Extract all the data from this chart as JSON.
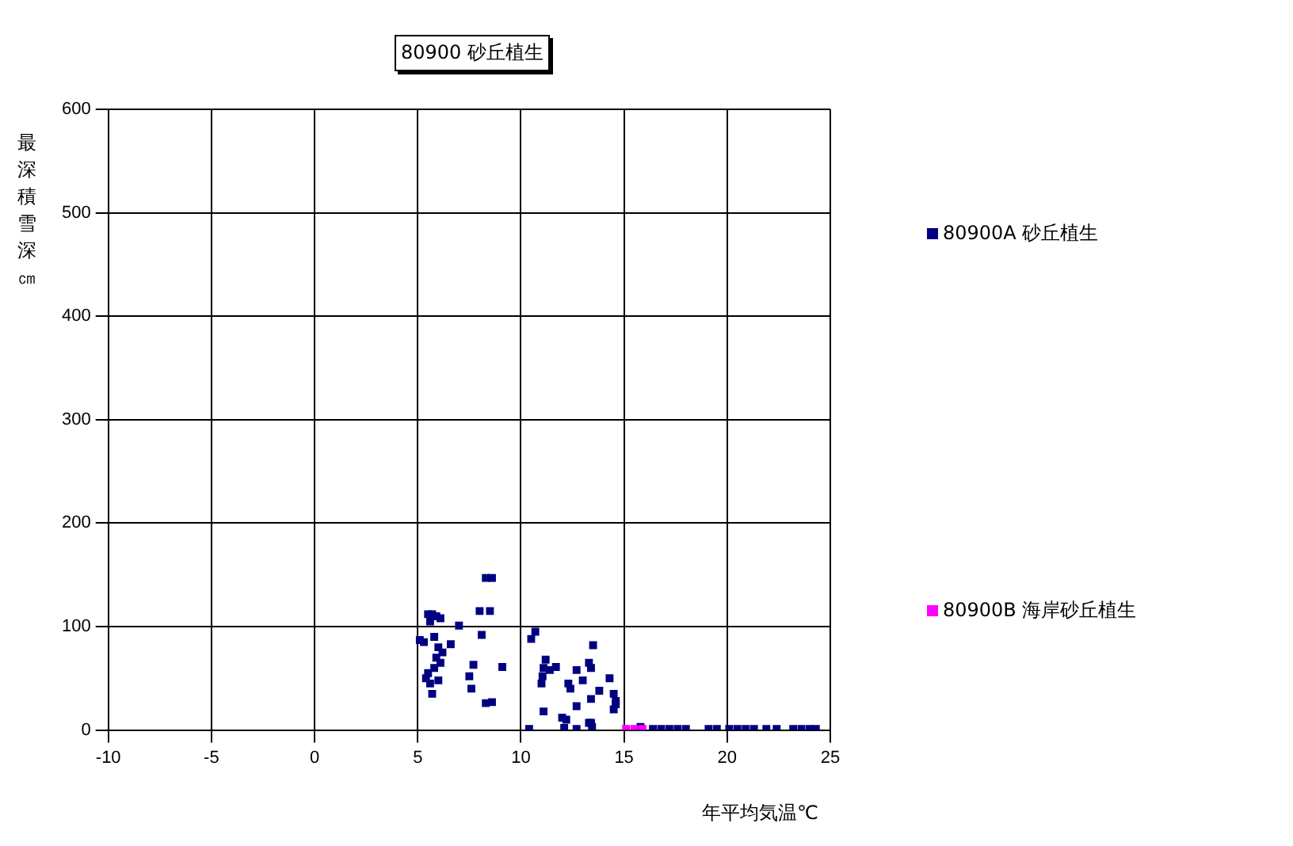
{
  "chart_data": {
    "type": "scatter",
    "title": "80900 砂丘植生",
    "xlabel": "年平均気温℃",
    "ylabel": "最深積雪深㎝",
    "xlim": [
      -10,
      25
    ],
    "xticks": [
      -10,
      -5,
      0,
      5,
      10,
      15,
      20,
      25
    ],
    "ylim": [
      0,
      600
    ],
    "yticks": [
      0,
      100,
      200,
      300,
      400,
      500,
      600
    ],
    "grid": true,
    "legend": "right",
    "marker": "square",
    "series": [
      {
        "name": "80900A 砂丘植生",
        "color": "#000080",
        "x": [
          8.3,
          8.6,
          5.5,
          5.7,
          5.9,
          6.1,
          5.6,
          8.0,
          8.5,
          7.0,
          8.1,
          5.1,
          5.3,
          6.6,
          5.8,
          6.0,
          6.2,
          5.9,
          6.1,
          5.8,
          7.7,
          9.1,
          7.5,
          7.6,
          5.5,
          5.4,
          5.7,
          5.6,
          6.0,
          8.3,
          8.6,
          10.7,
          10.5,
          10.4,
          11.2,
          11.1,
          11.05,
          11.0,
          11.7,
          11.4,
          11.1,
          12.0,
          12.2,
          12.1,
          12.7,
          12.7,
          12.7,
          12.3,
          13.0,
          13.4,
          13.5,
          13.3,
          13.4,
          13.8,
          13.4,
          13.3,
          14.3,
          14.5,
          14.6,
          14.5,
          14.6,
          13.45,
          12.4,
          15.8,
          16.4,
          16.8,
          17.2,
          17.6,
          18.0,
          19.1,
          19.5,
          20.1,
          20.5,
          20.9,
          21.3,
          21.9,
          22.4,
          23.2,
          23.6,
          24.0,
          24.3
        ],
        "values": [
          147,
          147,
          112,
          112,
          110,
          108,
          105,
          115,
          115,
          101,
          92,
          87,
          85,
          83,
          90,
          80,
          75,
          70,
          65,
          60,
          63,
          61,
          52,
          40,
          55,
          50,
          35,
          45,
          48,
          26,
          27,
          95,
          88,
          1,
          68,
          60,
          52,
          45,
          61,
          58,
          18,
          12,
          10,
          2,
          58,
          23,
          1,
          45,
          48,
          60,
          82,
          65,
          30,
          38,
          7,
          7,
          50,
          35,
          28,
          20,
          25,
          3,
          40,
          3,
          1,
          1,
          1,
          1,
          1,
          1,
          1,
          1,
          1,
          1,
          1,
          1,
          1,
          1,
          1,
          1,
          1
        ]
      },
      {
        "name": "80900B 海岸砂丘植生",
        "color": "#ff00ff",
        "x": [
          15.1,
          15.5,
          15.9
        ],
        "values": [
          1,
          1,
          1
        ]
      }
    ]
  }
}
